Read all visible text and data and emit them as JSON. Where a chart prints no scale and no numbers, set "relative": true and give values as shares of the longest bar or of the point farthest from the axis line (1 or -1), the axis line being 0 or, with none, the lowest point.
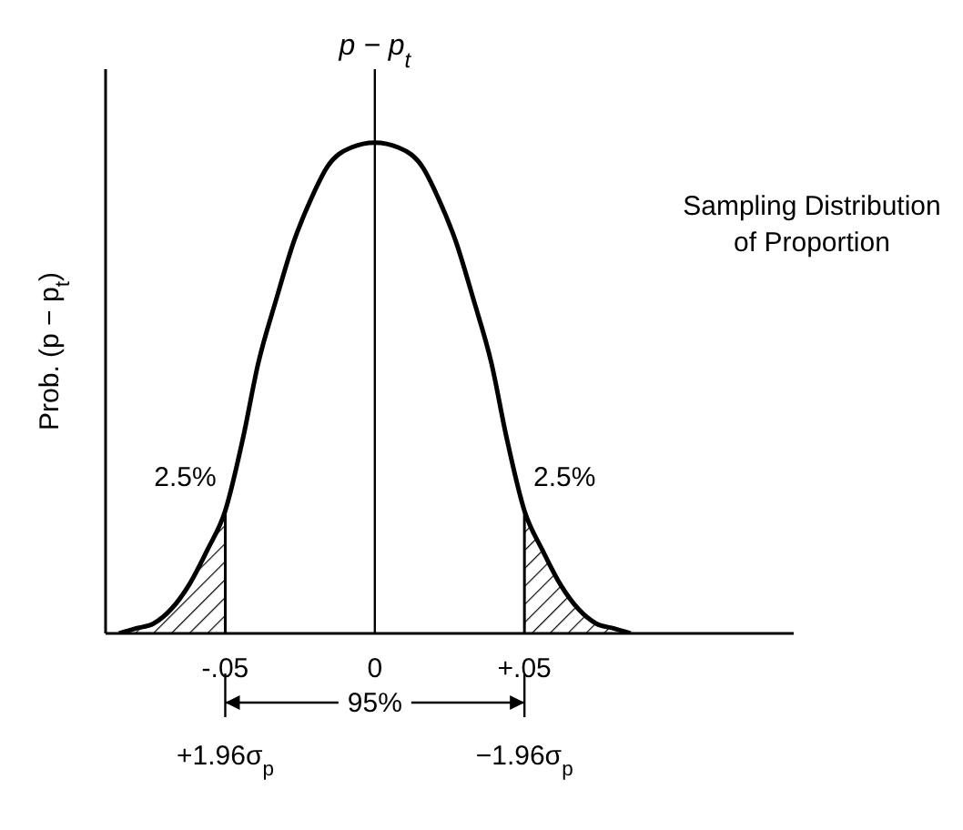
{
  "chart_data": {
    "type": "line",
    "relative": true,
    "title": "Sampling Distribution\nof Proportion",
    "ylabel": "Prob. (p − p$_{t}$)",
    "xlim": [
      -0.09,
      0.14
    ],
    "xticks": [
      {
        "value": -0.05,
        "label": "-.05"
      },
      0,
      {
        "value": 0.05,
        "label": "+.05"
      }
    ],
    "series": [
      {
        "color": "#000000",
        "x": [
          -0.0855,
          -0.08,
          -0.074,
          -0.068,
          -0.062,
          -0.056,
          -0.05,
          -0.044,
          -0.039,
          -0.033,
          -0.027,
          -0.021,
          -0.016,
          -0.008,
          0,
          0.008,
          0.016,
          0.021,
          0.027,
          0.033,
          0.039,
          0.044,
          0.05,
          0.056,
          0.062,
          0.068,
          0.074,
          0.08,
          0.0855
        ],
        "values": [
          0,
          0.01,
          0.02,
          0.05,
          0.1,
          0.17,
          0.25,
          0.4,
          0.55,
          0.68,
          0.8,
          0.89,
          0.95,
          0.99,
          1,
          0.99,
          0.95,
          0.89,
          0.8,
          0.68,
          0.55,
          0.4,
          0.25,
          0.17,
          0.1,
          0.05,
          0.02,
          0.01,
          0
        ]
      },
      {
        "type": "area",
        "color": "#000000",
        "x": [
          -0.0855,
          -0.08,
          -0.074,
          -0.068,
          -0.062,
          -0.056,
          -0.05
        ],
        "values": [
          0,
          0.01,
          0.02,
          0.05,
          0.1,
          0.17,
          0.25
        ]
      },
      {
        "type": "area",
        "color": "#000000",
        "x": [
          0.05,
          0.056,
          0.062,
          0.068,
          0.074,
          0.08,
          0.0855
        ],
        "values": [
          0.25,
          0.17,
          0.1,
          0.05,
          0.02,
          0.01,
          0
        ]
      }
    ],
    "ref_lines": [
      {
        "axis": "x",
        "value": 0,
        "label": "p − p$_{t}$"
      }
    ],
    "annotations": [
      "2.5%",
      "2.5%",
      "95%",
      "+1.96σ$_{p}$",
      "−1.96σ$_{p}$"
    ]
  }
}
